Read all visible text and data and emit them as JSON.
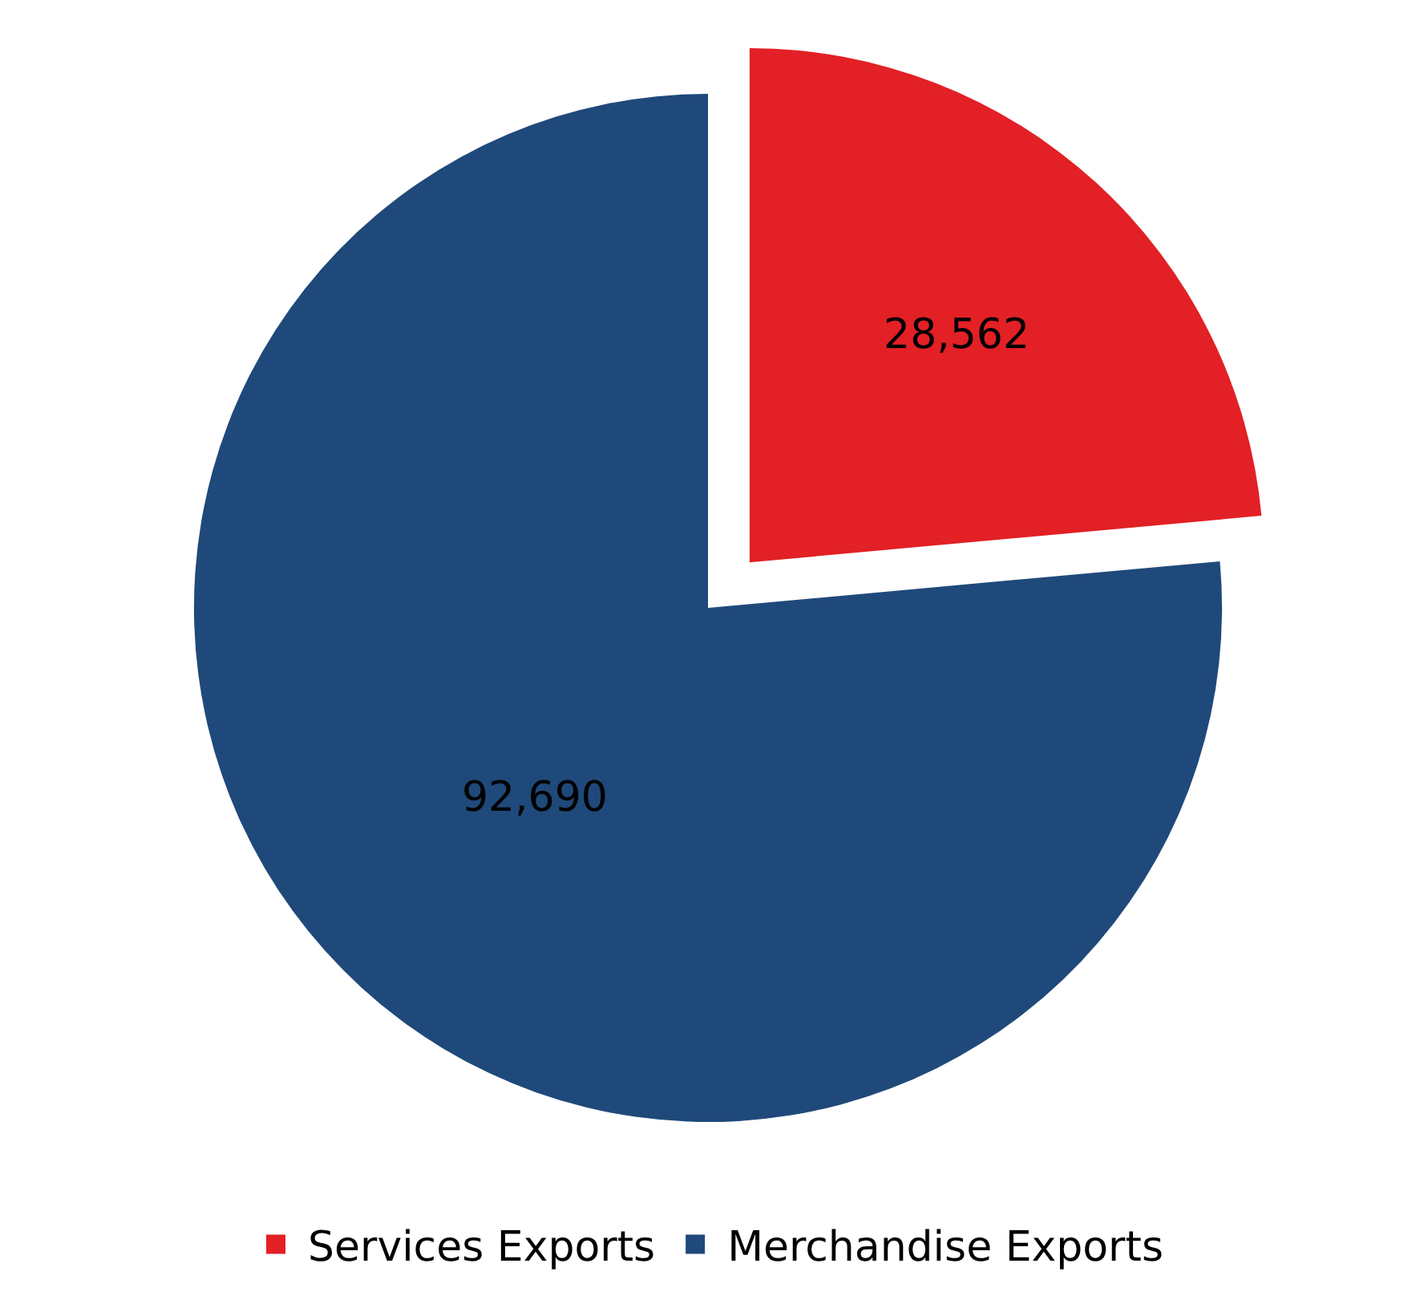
{
  "chart_data": {
    "type": "pie",
    "categories": [
      "Services Exports",
      "Merchandise Exports"
    ],
    "values": [
      28562,
      92690
    ],
    "colors": [
      "#e22025",
      "#1f497a"
    ],
    "value_labels": [
      "28,562",
      "92,690"
    ],
    "legend": "bottom"
  }
}
